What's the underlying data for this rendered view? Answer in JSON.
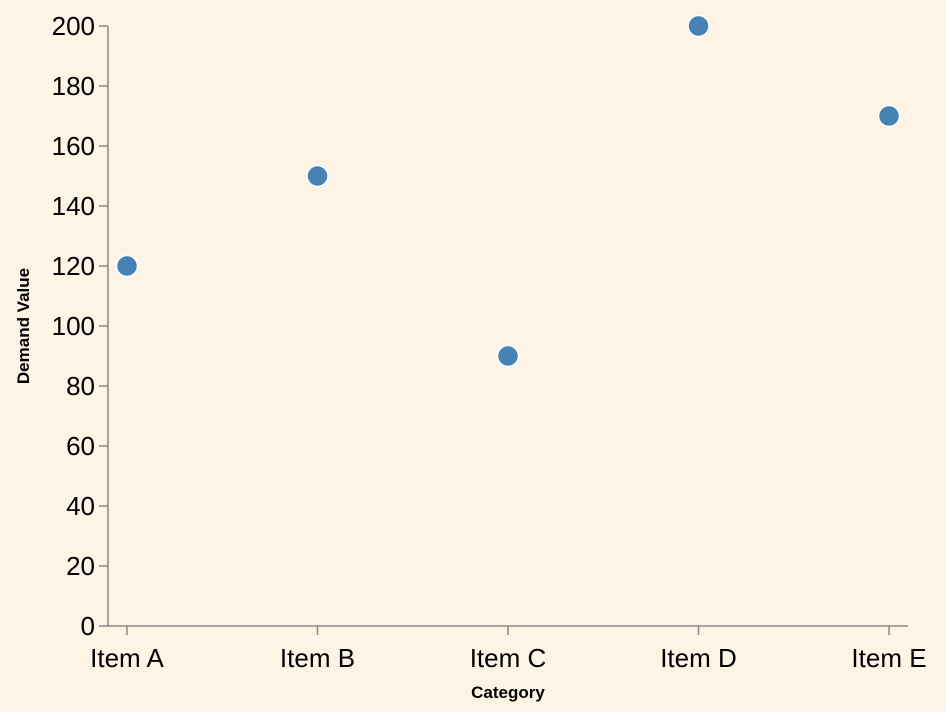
{
  "chart_data": {
    "type": "scatter",
    "categories": [
      "Item A",
      "Item B",
      "Item C",
      "Item D",
      "Item E"
    ],
    "values": [
      120,
      150,
      90,
      200,
      170
    ],
    "xlabel": "Category",
    "ylabel": "Demand Value",
    "ylim": [
      0,
      200
    ],
    "yticks": [
      0,
      20,
      40,
      60,
      80,
      100,
      120,
      140,
      160,
      180,
      200
    ],
    "grid": false,
    "colors": {
      "point": "#4682b4",
      "point_stroke": "#ffffff",
      "background": "#fef4e6",
      "axis": "#888888"
    }
  }
}
